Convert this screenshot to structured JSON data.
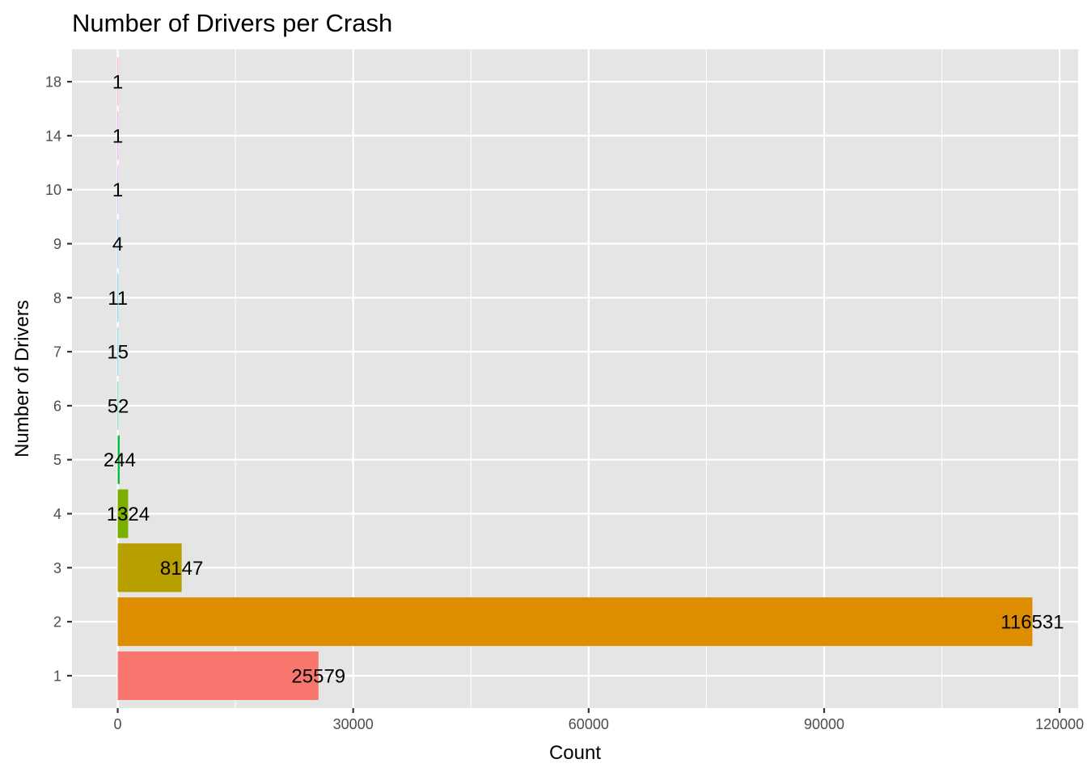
{
  "chart_data": {
    "type": "bar",
    "orientation": "horizontal",
    "title": "Number of Drivers per Crash",
    "xlabel": "Count",
    "ylabel": "Number of Drivers",
    "categories": [
      "1",
      "2",
      "3",
      "4",
      "5",
      "6",
      "7",
      "8",
      "9",
      "10",
      "14",
      "18"
    ],
    "values": [
      25579,
      116531,
      8147,
      1324,
      244,
      52,
      15,
      11,
      4,
      1,
      1,
      1
    ],
    "data_labels": [
      "25579",
      "116531",
      "8147",
      "1324",
      "244",
      "52",
      "15",
      "11",
      "4",
      "1",
      "1",
      "1"
    ],
    "bar_colors": [
      "#F8766D",
      "#DE8C00",
      "#B79F00",
      "#7CAE00",
      "#00BA38",
      "#00C08B",
      "#00BFC4",
      "#00B4F0",
      "#619CFF",
      "#C77CFF",
      "#F564E3",
      "#FF64B0"
    ],
    "xlim": [
      -5826.55,
      122357.55
    ],
    "x_ticks": [
      0,
      30000,
      60000,
      90000,
      120000
    ],
    "x_tick_labels": [
      "0",
      "30000",
      "60000",
      "90000",
      "120000"
    ],
    "grid": true,
    "legend": "none",
    "panel_background": "#E5E5E5",
    "grid_color": "#FFFFFF"
  }
}
